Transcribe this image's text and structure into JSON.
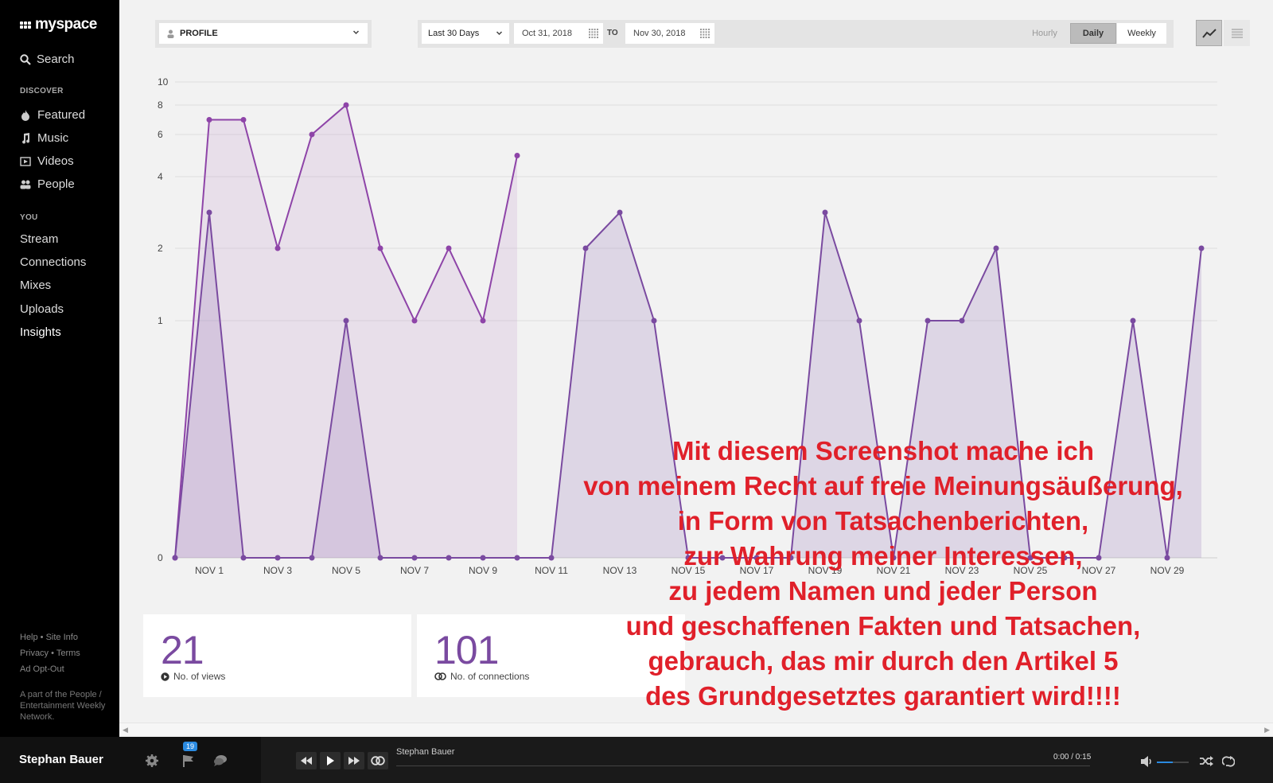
{
  "sidebar": {
    "logo": "myspace",
    "search_label": "Search",
    "discover_label": "DISCOVER",
    "discover_items": [
      {
        "label": "Featured",
        "icon": "flame-icon"
      },
      {
        "label": "Music",
        "icon": "music-note-icon"
      },
      {
        "label": "Videos",
        "icon": "video-icon"
      },
      {
        "label": "People",
        "icon": "people-icon"
      }
    ],
    "you_label": "YOU",
    "you_items": [
      "Stream",
      "Connections",
      "Mixes",
      "Uploads",
      "Insights"
    ],
    "footer": {
      "help": "Help",
      "site_info": "Site Info",
      "privacy": "Privacy",
      "terms": "Terms",
      "ad_opt_out": "Ad Opt-Out",
      "network_note": "A part of the People / Entertainment Weekly Network."
    }
  },
  "toolbar": {
    "profile_select": "PROFILE",
    "range_select": "Last 30 Days",
    "date_from": "Oct 31, 2018",
    "to_label": "TO",
    "date_to": "Nov 30, 2018",
    "granularity": [
      "Hourly",
      "Daily",
      "Weekly"
    ],
    "selected_granularity": "Daily",
    "view_buttons": [
      "line-chart-icon",
      "list-icon"
    ]
  },
  "chart_data": {
    "type": "area",
    "x": [
      "Oct 31",
      "Nov 1",
      "Nov 2",
      "Nov 3",
      "Nov 4",
      "Nov 5",
      "Nov 6",
      "Nov 7",
      "Nov 8",
      "Nov 9",
      "Nov 10",
      "Nov 11",
      "Nov 12",
      "Nov 13",
      "Nov 14",
      "Nov 15",
      "Nov 16",
      "Nov 17",
      "Nov 18",
      "Nov 19",
      "Nov 20",
      "Nov 21",
      "Nov 22",
      "Nov 23",
      "Nov 24",
      "Nov 25",
      "Nov 26",
      "Nov 27",
      "Nov 28",
      "Nov 29",
      "Nov 30"
    ],
    "tick_labels": [
      "NOV 1",
      "NOV 3",
      "NOV 5",
      "NOV 7",
      "NOV 9",
      "NOV 11",
      "NOV 13",
      "NOV 15",
      "NOV 17",
      "NOV 19",
      "NOV 21",
      "NOV 23",
      "NOV 25",
      "NOV 27",
      "NOV 29"
    ],
    "y_ticks": [
      0,
      1,
      2,
      4,
      6,
      8,
      10
    ],
    "ylim": [
      0,
      10
    ],
    "series": [
      {
        "color": "#8e44a8",
        "values": [
          0,
          7,
          7,
          2,
          6,
          8,
          2,
          1,
          2,
          1,
          5,
          null,
          null,
          null,
          null,
          null,
          null,
          null,
          null,
          null,
          null,
          null,
          null,
          null,
          null,
          null,
          null,
          null,
          null,
          null,
          null
        ]
      },
      {
        "color": "#7a4aa0",
        "values": [
          0,
          3,
          0,
          0,
          0,
          1,
          0,
          0,
          0,
          0,
          0,
          0,
          2,
          3,
          1,
          0,
          0,
          0,
          0,
          3,
          1,
          0,
          1,
          1,
          2,
          0,
          0,
          0,
          1,
          0,
          2
        ]
      }
    ]
  },
  "stats": [
    {
      "value": "21",
      "label": "No. of views",
      "icon": "play-circle-icon"
    },
    {
      "value": "101",
      "label": "No. of connections",
      "icon": "connections-icon"
    }
  ],
  "annotation": [
    "Mit diesem Screenshot mache ich",
    "von meinem Recht auf freie Meinungsäußerung,",
    "in Form von Tatsachenberichten,",
    "zur Wahrung meiner Interessen,",
    "zu jedem Namen und jeder Person",
    "und geschaffenen Fakten und Tatsachen,",
    "gebrauch, das mir durch den Artikel 5",
    "des Grundgesetztes garantiert wird!!!!"
  ],
  "player": {
    "user_name": "Stephan Bauer",
    "notification_count": "19",
    "track_title": "Stephan Bauer",
    "time": "0:00 / 0:15"
  }
}
